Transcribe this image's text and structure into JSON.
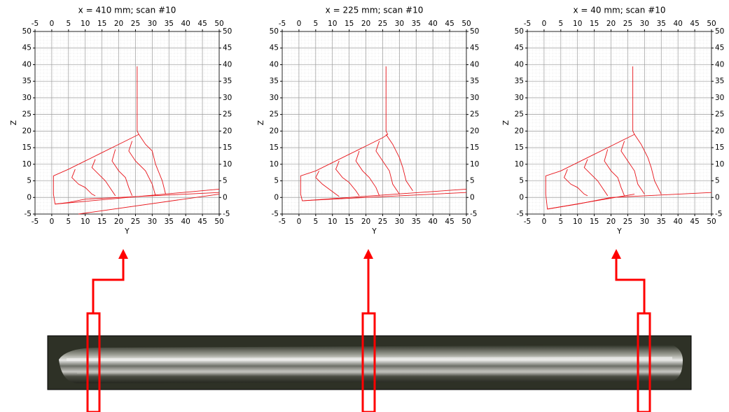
{
  "chart_data": [
    {
      "type": "line",
      "title": "x = 410 mm; scan #10",
      "xlabel": "Y",
      "ylabel": "Z",
      "xlim": [
        -5,
        50
      ],
      "ylim": [
        -5,
        50
      ],
      "xticks": [
        -5,
        0,
        5,
        10,
        15,
        20,
        25,
        30,
        35,
        40,
        45,
        50
      ],
      "yticks": [
        -5,
        0,
        5,
        10,
        15,
        20,
        25,
        30,
        35,
        40,
        45,
        50
      ],
      "grid": true,
      "series": [
        {
          "color": "#e8141a",
          "x": [
            25.5,
            25.5,
            26,
            25,
            20,
            15,
            10,
            5,
            0.5,
            0.5,
            1,
            5,
            10,
            20,
            30,
            40,
            50
          ],
          "values": [
            39.5,
            20,
            19,
            18.5,
            16,
            13.5,
            11,
            8.5,
            6.5,
            1,
            -2,
            -1.5,
            -0.5,
            0,
            0.5,
            1,
            1.5
          ]
        },
        {
          "color": "#e8141a",
          "x": [
            7,
            6,
            8,
            10,
            12,
            13
          ],
          "values": [
            8.5,
            6,
            4,
            3,
            1,
            0.5
          ]
        },
        {
          "color": "#e8141a",
          "x": [
            13,
            12,
            14,
            16,
            18,
            19
          ],
          "values": [
            11.5,
            9,
            7,
            5,
            2,
            0.5
          ]
        },
        {
          "color": "#e8141a",
          "x": [
            19,
            18,
            20,
            22,
            23,
            24
          ],
          "values": [
            14.5,
            11,
            8,
            6,
            3,
            0.5
          ]
        },
        {
          "color": "#e8141a",
          "x": [
            24,
            23,
            25,
            28,
            30,
            31
          ],
          "values": [
            17,
            14,
            11,
            8,
            4,
            0.5
          ]
        },
        {
          "color": "#e8141a",
          "x": [
            26,
            28,
            30,
            31,
            33,
            34
          ],
          "values": [
            19,
            16,
            14,
            10,
            5,
            1
          ]
        },
        {
          "color": "#e8141a",
          "x": [
            1,
            50
          ],
          "values": [
            -2,
            2.5
          ]
        },
        {
          "color": "#e8141a",
          "x": [
            8,
            50
          ],
          "values": [
            -5,
            1
          ]
        }
      ]
    },
    {
      "type": "line",
      "title": "x = 225 mm; scan #10",
      "xlabel": "Y",
      "ylabel": "Z",
      "xlim": [
        -5,
        50
      ],
      "ylim": [
        -5,
        50
      ],
      "xticks": [
        -5,
        0,
        5,
        10,
        15,
        20,
        25,
        30,
        35,
        40,
        45,
        50
      ],
      "yticks": [
        -5,
        0,
        5,
        10,
        15,
        20,
        25,
        30,
        35,
        40,
        45,
        50
      ],
      "grid": true,
      "series": [
        {
          "color": "#e8141a",
          "x": [
            26,
            26,
            26.5,
            25,
            20,
            15,
            10,
            5,
            0.5,
            0.5,
            1,
            10,
            20,
            30,
            40,
            50
          ],
          "values": [
            39.5,
            20,
            19,
            18,
            15.5,
            13,
            10.5,
            8,
            6.5,
            1,
            -1,
            -0.5,
            0,
            0.5,
            1,
            1.5
          ]
        },
        {
          "color": "#e8141a",
          "x": [
            6,
            5,
            7,
            9,
            11,
            12
          ],
          "values": [
            8,
            6,
            4,
            2.5,
            1,
            0.3
          ]
        },
        {
          "color": "#e8141a",
          "x": [
            12,
            11,
            13,
            15,
            17,
            18
          ],
          "values": [
            11,
            8.5,
            6,
            4.5,
            2,
            0.5
          ]
        },
        {
          "color": "#e8141a",
          "x": [
            18,
            17,
            19,
            21,
            23,
            24
          ],
          "values": [
            14,
            11,
            8,
            6,
            3,
            0.5
          ]
        },
        {
          "color": "#e8141a",
          "x": [
            24,
            23,
            25,
            27,
            28,
            30
          ],
          "values": [
            17,
            14,
            11,
            8,
            4,
            1
          ]
        },
        {
          "color": "#e8141a",
          "x": [
            26,
            28,
            30,
            31,
            32,
            34
          ],
          "values": [
            19,
            16,
            12,
            9,
            5,
            2
          ]
        },
        {
          "color": "#e8141a",
          "x": [
            1,
            50
          ],
          "values": [
            -1,
            2.5
          ]
        }
      ]
    },
    {
      "type": "line",
      "title": "x = 40 mm; scan #10",
      "xlabel": "Y",
      "ylabel": "Z",
      "xlim": [
        -5,
        50
      ],
      "ylim": [
        -5,
        50
      ],
      "xticks": [
        -5,
        0,
        5,
        10,
        15,
        20,
        25,
        30,
        35,
        40,
        45,
        50
      ],
      "yticks": [
        -5,
        0,
        5,
        10,
        15,
        20,
        25,
        30,
        35,
        40,
        45,
        50
      ],
      "grid": true,
      "series": [
        {
          "color": "#e8141a",
          "x": [
            26.5,
            26.5,
            27,
            25,
            20,
            15,
            10,
            5,
            0.5,
            0.5,
            1,
            10,
            20,
            30,
            40,
            50
          ],
          "values": [
            39.5,
            20,
            19,
            18,
            15.5,
            13,
            10.5,
            8,
            6.5,
            1,
            -3.5,
            -2,
            0,
            0.5,
            1,
            1.5
          ]
        },
        {
          "color": "#e8141a",
          "x": [
            7,
            6,
            8,
            10,
            12,
            13
          ],
          "values": [
            8.5,
            6,
            4,
            3,
            1,
            0.5
          ]
        },
        {
          "color": "#e8141a",
          "x": [
            13,
            12,
            14,
            16,
            18,
            19
          ],
          "values": [
            11.5,
            9,
            7,
            5,
            2,
            0.5
          ]
        },
        {
          "color": "#e8141a",
          "x": [
            19,
            18,
            20,
            22,
            23,
            24
          ],
          "values": [
            14.5,
            11,
            8,
            6,
            3,
            0.5
          ]
        },
        {
          "color": "#e8141a",
          "x": [
            24,
            23,
            25,
            27,
            28,
            30
          ],
          "values": [
            17,
            14,
            11,
            8,
            4,
            1
          ]
        },
        {
          "color": "#e8141a",
          "x": [
            27,
            29,
            31,
            32,
            33,
            35
          ],
          "values": [
            19,
            16,
            12,
            9,
            5,
            1
          ]
        },
        {
          "color": "#e8141a",
          "x": [
            1,
            27
          ],
          "values": [
            -3.5,
            1
          ]
        }
      ]
    }
  ]
}
